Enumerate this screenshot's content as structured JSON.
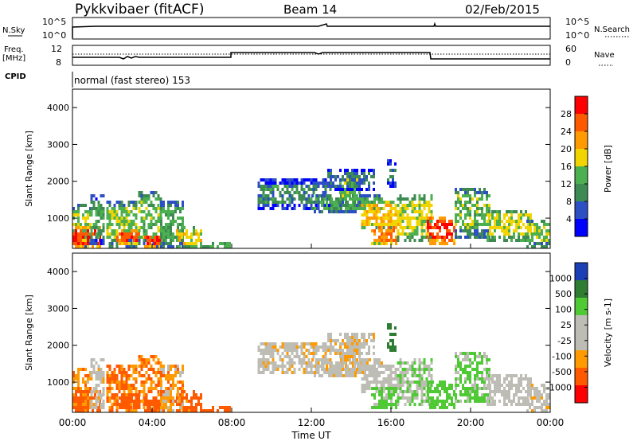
{
  "header": {
    "radar": "Pykkvibaer (fitACF)",
    "beam": "Beam 14",
    "date": "02/Feb/2015"
  },
  "params": {
    "nsky_label": "N.Sky",
    "nsky_ticks": [
      "10^5",
      "10^0"
    ],
    "nsearch_label": "N.Search",
    "nsearch_ticks": [
      "10^5",
      "10^0"
    ],
    "freq_label": [
      "Freq.",
      "[MHz]"
    ],
    "freq_ticks": [
      "12",
      "8"
    ],
    "nave_label": "Nave",
    "nave_ticks": [
      "60",
      "0"
    ],
    "cpid_label": "CPID",
    "cpid_value": "normal (fast stereo) 153"
  },
  "colors": {
    "power_scale": [
      "#0000ff",
      "#2c4fc4",
      "#3d8a52",
      "#4caf50",
      "#f2d500",
      "#ff9a00",
      "#ff5a00",
      "#ff0000"
    ],
    "velocity_scale": [
      "#ff0000",
      "#ff5a00",
      "#ff9a00",
      "#bdbdb5",
      "#bdbdb5",
      "#4fc934",
      "#2e7d32",
      "#1b3fb5"
    ]
  },
  "chart_data": [
    {
      "type": "heatmap",
      "name": "power",
      "ylabel": "Slant Range [km]",
      "yticks": [
        "4000",
        "3000",
        "2000",
        "1000"
      ],
      "ylim": [
        180,
        4500
      ],
      "colorbar_label": "Power [dB]",
      "colorbar_ticks": [
        "28",
        "24",
        "20",
        "16",
        "12",
        "8",
        "4"
      ],
      "zlim": [
        0,
        32
      ]
    },
    {
      "type": "heatmap",
      "name": "velocity",
      "ylabel": "Slant Range [km]",
      "yticks": [
        "4000",
        "3000",
        "2000",
        "1000"
      ],
      "ylim": [
        180,
        4500
      ],
      "colorbar_label": "Velocity [m s-1]",
      "colorbar_ticks": [
        "1000",
        "500",
        "100",
        "25",
        "-25",
        "-100",
        "-500",
        "-1000"
      ]
    }
  ],
  "xaxis": {
    "label": "Time UT",
    "ticks": [
      "00:00",
      "04:00",
      "08:00",
      "12:00",
      "16:00",
      "20:00",
      "00:00"
    ],
    "range_hours": [
      0,
      24
    ]
  },
  "patches": [
    {
      "t0": 0.0,
      "t1": 0.85,
      "r0": 230,
      "r1": 1450,
      "p": 15,
      "v": -80
    },
    {
      "t0": 0.0,
      "t1": 1.4,
      "r0": 230,
      "r1": 800,
      "p": 27,
      "v": -150
    },
    {
      "t0": 0.9,
      "t1": 1.6,
      "r0": 300,
      "r1": 1700,
      "p": 11,
      "v": 20
    },
    {
      "t0": 1.7,
      "t1": 3.2,
      "r0": 260,
      "r1": 1500,
      "p": 15,
      "v": -120
    },
    {
      "t0": 2.2,
      "t1": 3.3,
      "r0": 300,
      "r1": 700,
      "p": 26,
      "v": -180
    },
    {
      "t0": 3.3,
      "t1": 4.4,
      "r0": 260,
      "r1": 1800,
      "p": 14,
      "v": -90
    },
    {
      "t0": 3.6,
      "t1": 4.4,
      "r0": 260,
      "r1": 600,
      "p": 27,
      "v": -160
    },
    {
      "t0": 4.4,
      "t1": 5.5,
      "r0": 230,
      "r1": 1500,
      "p": 13,
      "v": -60
    },
    {
      "t0": 5.2,
      "t1": 6.5,
      "r0": 200,
      "r1": 800,
      "p": 18,
      "v": -140
    },
    {
      "t0": 6.4,
      "t1": 7.9,
      "r0": 180,
      "r1": 400,
      "p": 13,
      "v": -200
    },
    {
      "t0": 9.3,
      "t1": 13.0,
      "r0": 1300,
      "r1": 2100,
      "p": 10,
      "v": 15
    },
    {
      "t0": 12.0,
      "t1": 15.5,
      "r0": 1200,
      "r1": 1700,
      "p": 13,
      "v": 10
    },
    {
      "t0": 13.4,
      "t1": 14.4,
      "r0": 1350,
      "r1": 2250,
      "p": 15,
      "v": 5
    },
    {
      "t0": 14.5,
      "t1": 16.5,
      "r0": 700,
      "r1": 1550,
      "p": 20,
      "v": 40
    },
    {
      "t0": 15.0,
      "t1": 16.3,
      "r0": 350,
      "r1": 900,
      "p": 24,
      "v": 150
    },
    {
      "t0": 16.3,
      "t1": 18.0,
      "r0": 400,
      "r1": 1700,
      "p": 17,
      "v": 80
    },
    {
      "t0": 17.8,
      "t1": 19.2,
      "r0": 350,
      "r1": 1100,
      "p": 28,
      "v": 300
    },
    {
      "t0": 19.2,
      "t1": 21.0,
      "r0": 500,
      "r1": 1900,
      "p": 14,
      "v": 120
    },
    {
      "t0": 20.8,
      "t1": 23.0,
      "r0": 400,
      "r1": 1300,
      "p": 17,
      "v": 40
    },
    {
      "t0": 22.8,
      "t1": 24.0,
      "r0": 250,
      "r1": 1000,
      "p": 15,
      "v": 20
    },
    {
      "t0": 15.8,
      "t1": 16.2,
      "r0": 1900,
      "r1": 2600,
      "p": 9,
      "v": 700
    },
    {
      "t0": 12.8,
      "t1": 15.2,
      "r0": 1800,
      "r1": 2400,
      "p": 8,
      "v": 10
    }
  ]
}
